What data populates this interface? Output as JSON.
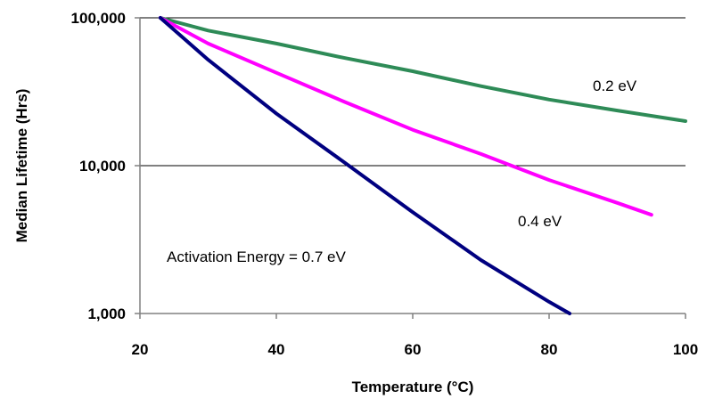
{
  "chart_data": {
    "type": "line",
    "xlabel": "Temperature (°C)",
    "ylabel": "Median Lifetime (Hrs)",
    "xlim": [
      20,
      100
    ],
    "ylim": [
      1000,
      100000
    ],
    "yscale": "log",
    "xticks": [
      20,
      40,
      60,
      80,
      100
    ],
    "yticks": [
      1000,
      10000,
      100000
    ],
    "xtick_labels": [
      "20",
      "40",
      "60",
      "80",
      "100"
    ],
    "ytick_labels": [
      "1,000",
      "10,000",
      "100,000"
    ],
    "grid": "horizontal",
    "series": [
      {
        "label": "0.2 eV",
        "color": "#2e8b57",
        "x": [
          23,
          30,
          40,
          50,
          60,
          70,
          80,
          90,
          100
        ],
        "y": [
          100000,
          82000,
          67000,
          53500,
          43500,
          34500,
          28000,
          23600,
          20000
        ]
      },
      {
        "label": "0.4 eV",
        "color": "#ff00ff",
        "x": [
          23,
          30,
          40,
          50,
          60,
          70,
          80,
          90,
          95
        ],
        "y": [
          100000,
          67000,
          42500,
          27000,
          17500,
          12000,
          8000,
          5600,
          4650
        ]
      },
      {
        "label": "Activation Energy = 0.7 eV",
        "color": "#000080",
        "x": [
          23,
          30,
          40,
          50,
          60,
          70,
          80,
          83
        ],
        "y": [
          100000,
          52000,
          22500,
          10500,
          4850,
          2300,
          1200,
          1000
        ]
      }
    ]
  }
}
